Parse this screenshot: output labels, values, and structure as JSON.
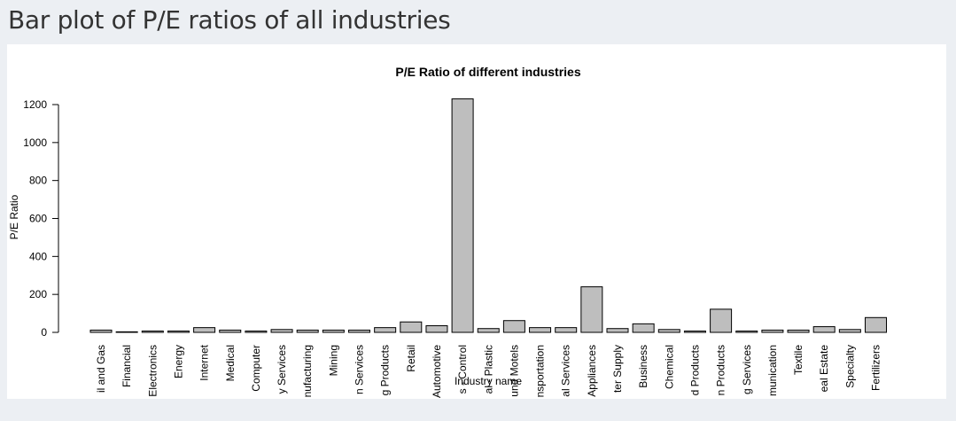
{
  "page": {
    "title": "Bar plot of P/E ratios of all industries"
  },
  "chart_data": {
    "type": "bar",
    "title": "P/E Ratio of different industries",
    "xlabel": "Industry name",
    "ylabel": "P/E Ratio",
    "ylim": [
      0,
      1200
    ],
    "yticks": [
      0,
      200,
      400,
      600,
      800,
      1000,
      1200
    ],
    "bar_color": "#bebebe",
    "categories": [
      "il and Gas",
      "Financial",
      "Electronics",
      "Energy",
      "Internet",
      "Medical",
      "Computer",
      "y Services",
      "nufacturing",
      "Mining",
      "n Services",
      "g Products",
      "Retail",
      "Automotive",
      "s - Control",
      "al - Plastic",
      "und Motels",
      "nsportation",
      "al Services",
      "Appliances",
      "ter Supply",
      "Business",
      "Chemical",
      "d Products",
      "n Products",
      "g Services",
      "munication",
      "Textile",
      "eal Estate",
      "Specialty",
      "Fertilizers"
    ],
    "values": [
      12,
      3,
      7,
      7,
      25,
      12,
      7,
      15,
      12,
      12,
      12,
      25,
      55,
      35,
      1230,
      20,
      62,
      25,
      25,
      240,
      20,
      45,
      15,
      7,
      122,
      7,
      12,
      12,
      30,
      15,
      78
    ]
  }
}
